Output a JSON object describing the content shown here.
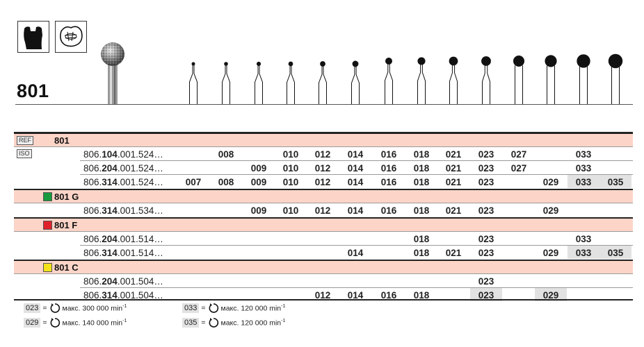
{
  "product": {
    "title": "801",
    "icons": [
      "tooth-crown-preparation-icon",
      "occlusal-cavity-icon"
    ]
  },
  "columns": [
    "007",
    "008",
    "009",
    "010",
    "012",
    "014",
    "016",
    "018",
    "021",
    "023",
    "027",
    "029",
    "033",
    "035"
  ],
  "table": {
    "ref_badge": "REF",
    "iso_badge": "ISO",
    "groups": [
      {
        "label": "801",
        "color": null,
        "rows": [
          {
            "code_pre": "806.",
            "code_bold": "104",
            "code_post": ".001.524…",
            "cells": [
              "",
              "008",
              "",
              "010",
              "012",
              "014",
              "016",
              "018",
              "021",
              "023",
              "027",
              "",
              "033",
              ""
            ],
            "highlight": []
          },
          {
            "code_pre": "806.",
            "code_bold": "204",
            "code_post": ".001.524…",
            "cells": [
              "",
              "",
              "009",
              "010",
              "012",
              "014",
              "016",
              "018",
              "021",
              "023",
              "027",
              "",
              "033",
              ""
            ],
            "highlight": []
          },
          {
            "code_pre": "806.",
            "code_bold": "314",
            "code_post": ".001.524…",
            "cells": [
              "007",
              "008",
              "009",
              "010",
              "012",
              "014",
              "016",
              "018",
              "021",
              "023",
              "",
              "029",
              "033",
              "035"
            ],
            "highlight": [
              12,
              13
            ]
          }
        ]
      },
      {
        "label": "801 G",
        "color": "#1a9a3e",
        "rows": [
          {
            "code_pre": "806.",
            "code_bold": "314",
            "code_post": ".001.534…",
            "cells": [
              "",
              "",
              "009",
              "010",
              "012",
              "014",
              "016",
              "018",
              "021",
              "023",
              "",
              "029",
              "",
              ""
            ],
            "highlight": []
          }
        ]
      },
      {
        "label": "801 F",
        "color": "#e0202a",
        "rows": [
          {
            "code_pre": "806.",
            "code_bold": "204",
            "code_post": ".001.514…",
            "cells": [
              "",
              "",
              "",
              "",
              "",
              "",
              "",
              "018",
              "",
              "023",
              "",
              "",
              "033",
              ""
            ],
            "highlight": []
          },
          {
            "code_pre": "806.",
            "code_bold": "314",
            "code_post": ".001.514…",
            "cells": [
              "",
              "",
              "",
              "",
              "",
              "014",
              "",
              "018",
              "021",
              "023",
              "",
              "029",
              "033",
              "035"
            ],
            "highlight": [
              12,
              13
            ]
          }
        ]
      },
      {
        "label": "801 C",
        "color": "#f5e21a",
        "rows": [
          {
            "code_pre": "806.",
            "code_bold": "204",
            "code_post": ".001.504…",
            "cells": [
              "",
              "",
              "",
              "",
              "",
              "",
              "",
              "",
              "",
              "023",
              "",
              "",
              "",
              ""
            ],
            "highlight": []
          },
          {
            "code_pre": "806.",
            "code_bold": "314",
            "code_post": ".001.504…",
            "cells": [
              "",
              "",
              "",
              "",
              "012",
              "014",
              "016",
              "018",
              "",
              "023",
              "",
              "029",
              "",
              ""
            ],
            "highlight": [
              9,
              11
            ]
          }
        ]
      }
    ]
  },
  "legend": [
    {
      "key": "023",
      "eq": "=",
      "text": "макс. 300 000 min",
      "sup": "-1",
      "icon": "rotation-speed-icon"
    },
    {
      "key": "033",
      "eq": "=",
      "text": "макс. 120 000 min",
      "sup": "-1",
      "icon": "rotation-speed-icon"
    },
    {
      "key": "029",
      "eq": "=",
      "text": "макс. 140 000 min",
      "sup": "-1",
      "icon": "rotation-speed-icon"
    },
    {
      "key": "035",
      "eq": "=",
      "text": "макс. 120 000 min",
      "sup": "-1",
      "icon": "rotation-speed-icon"
    }
  ],
  "colors": {
    "header_bg": "#fdd5c8",
    "highlight_bg": "#e2e2e2"
  }
}
